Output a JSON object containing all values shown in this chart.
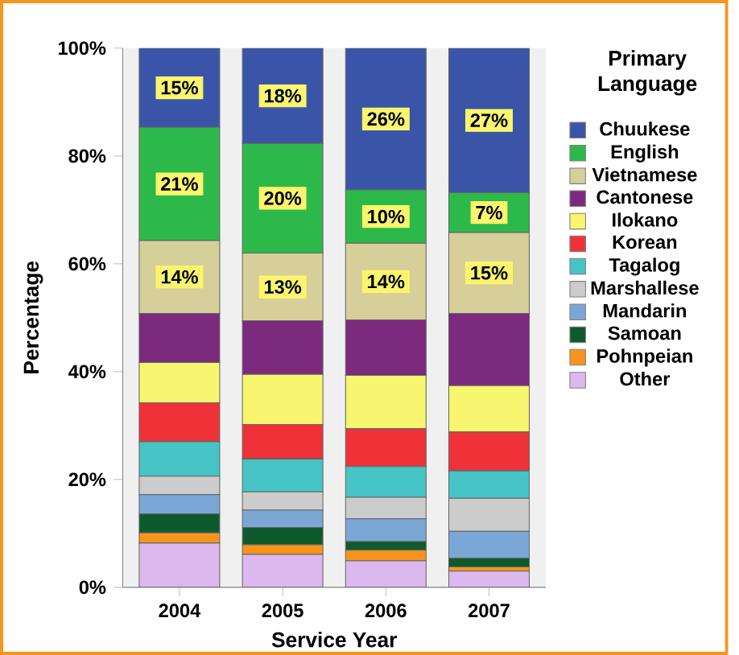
{
  "chart_data": {
    "type": "bar",
    "stacked": true,
    "xlabel": "Service Year",
    "ylabel": "Percentage",
    "legend_title": "Primary Language",
    "legend": "right",
    "grid": false,
    "categories": [
      "2004",
      "2005",
      "2006",
      "2007"
    ],
    "ylim": [
      0,
      100
    ],
    "yticks": [
      {
        "value": 0,
        "label": "0%"
      },
      {
        "value": 20,
        "label": "20%"
      },
      {
        "value": 40,
        "label": "40%"
      },
      {
        "value": 60,
        "label": "60%"
      },
      {
        "value": 80,
        "label": "80%"
      },
      {
        "value": 100,
        "label": "100%"
      }
    ],
    "series": [
      {
        "name": "Other",
        "color": "#dcb8ee",
        "values": [
          8.2,
          6.1,
          4.9,
          3.0
        ]
      },
      {
        "name": "Pohnpeian",
        "color": "#f7941d",
        "values": [
          1.9,
          1.8,
          2.0,
          0.8
        ]
      },
      {
        "name": "Samoan",
        "color": "#0e5a2c",
        "values": [
          3.5,
          3.2,
          1.6,
          1.6
        ]
      },
      {
        "name": "Mandarin",
        "color": "#7aa7d6",
        "values": [
          3.6,
          3.2,
          4.2,
          5.0
        ]
      },
      {
        "name": "Marshallese",
        "color": "#cccccc",
        "values": [
          3.4,
          3.4,
          4.0,
          6.1
        ]
      },
      {
        "name": "Tagalog",
        "color": "#46c4c6",
        "values": [
          6.4,
          6.1,
          5.7,
          5.1
        ]
      },
      {
        "name": "Korean",
        "color": "#ee3238",
        "values": [
          7.2,
          6.4,
          7.0,
          7.2
        ]
      },
      {
        "name": "Ilokano",
        "color": "#f8f56e",
        "values": [
          7.5,
          9.3,
          9.9,
          8.6
        ]
      },
      {
        "name": "Cantonese",
        "color": "#7b2a7e",
        "values": [
          9.1,
          9.9,
          10.3,
          13.4
        ]
      },
      {
        "name": "Vietnamese",
        "color": "#d6cf9a",
        "values": [
          13.5,
          12.6,
          14.2,
          15.0
        ],
        "value_labels": [
          "14%",
          "13%",
          "14%",
          "15%"
        ]
      },
      {
        "name": "English",
        "color": "#2db84a",
        "values": [
          21.0,
          20.3,
          9.9,
          7.4
        ],
        "value_labels": [
          "21%",
          "20%",
          "10%",
          "7%"
        ]
      },
      {
        "name": "Chuukese",
        "color": "#3a55a8",
        "values": [
          14.7,
          17.7,
          26.3,
          26.8
        ],
        "value_labels": [
          "15%",
          "18%",
          "26%",
          "27%"
        ]
      }
    ]
  }
}
